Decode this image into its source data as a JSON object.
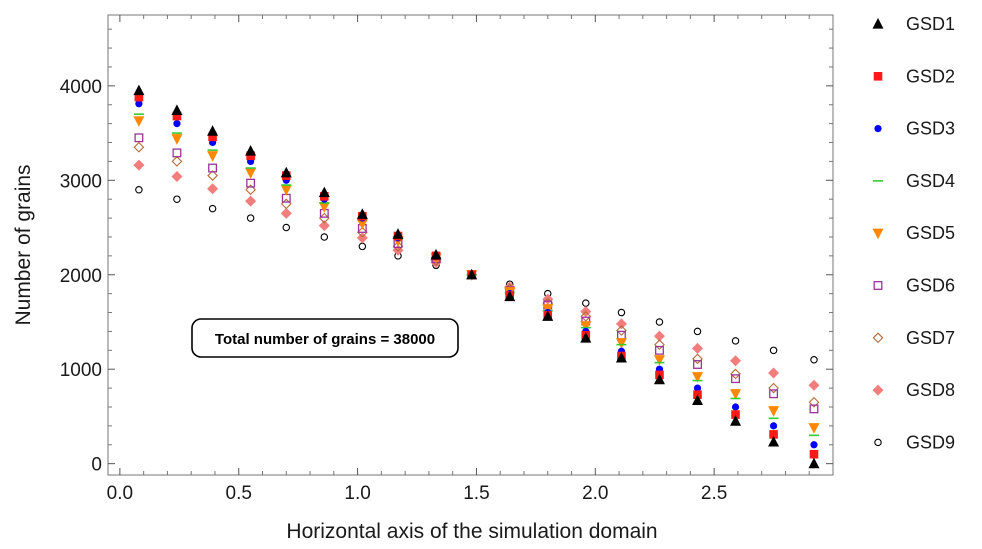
{
  "chart_data": {
    "type": "scatter",
    "title": "",
    "xlabel": "Horizontal axis of the simulation domain",
    "ylabel": "Number of grains",
    "xlim": [
      -0.05,
      3.0
    ],
    "ylim": [
      -120,
      4750
    ],
    "xticks": [
      0.0,
      0.5,
      1.0,
      1.5,
      2.0,
      2.5
    ],
    "yticks": [
      0,
      1000,
      2000,
      3000,
      4000
    ],
    "xtick_labels": [
      "0.0",
      "0.5",
      "1.0",
      "1.5",
      "2.0",
      "2.5"
    ],
    "ytick_labels": [
      "0",
      "1000",
      "2000",
      "3000",
      "4000"
    ],
    "grid": false,
    "legend_position": "right",
    "annotation": "Total number of grains = 38000",
    "x": [
      0.08,
      0.24,
      0.39,
      0.55,
      0.7,
      0.86,
      1.02,
      1.17,
      1.33,
      1.48,
      1.64,
      1.8,
      1.96,
      2.11,
      2.27,
      2.43,
      2.59,
      2.75,
      2.92
    ],
    "series": [
      {
        "name": "GSD1",
        "marker": "triangle",
        "color": "#000000",
        "values": [
          3950,
          3740,
          3520,
          3310,
          3080,
          2870,
          2640,
          2430,
          2210,
          2000,
          1770,
          1560,
          1330,
          1120,
          890,
          670,
          450,
          230,
          0
        ]
      },
      {
        "name": "GSD2",
        "marker": "square",
        "color": "#ff1a1a",
        "values": [
          3880,
          3680,
          3460,
          3260,
          3050,
          2830,
          2620,
          2410,
          2200,
          2000,
          1780,
          1570,
          1360,
          1140,
          940,
          730,
          520,
          310,
          100
        ]
      },
      {
        "name": "GSD3",
        "marker": "circle",
        "color": "#0000ff",
        "values": [
          3810,
          3600,
          3400,
          3200,
          3000,
          2800,
          2600,
          2390,
          2190,
          2000,
          1800,
          1600,
          1400,
          1190,
          1000,
          800,
          600,
          400,
          200
        ]
      },
      {
        "name": "GSD4",
        "marker": "dash",
        "color": "#33cc33",
        "values": [
          3700,
          3500,
          3320,
          3130,
          2950,
          2760,
          2580,
          2380,
          2180,
          2000,
          1810,
          1620,
          1440,
          1260,
          1070,
          880,
          690,
          480,
          300
        ]
      },
      {
        "name": "GSD5",
        "marker": "triangle-down",
        "color": "#ff8800",
        "values": [
          3630,
          3440,
          3260,
          3080,
          2900,
          2720,
          2540,
          2360,
          2180,
          2000,
          1820,
          1640,
          1460,
          1280,
          1100,
          920,
          740,
          560,
          380
        ]
      },
      {
        "name": "GSD6",
        "marker": "square-open",
        "color": "#993399",
        "values": [
          3450,
          3290,
          3130,
          2970,
          2810,
          2650,
          2490,
          2330,
          2170,
          2000,
          1830,
          1680,
          1510,
          1360,
          1200,
          1050,
          900,
          740,
          580
        ]
      },
      {
        "name": "GSD7",
        "marker": "diamond-open",
        "color": "#b36b3a",
        "values": [
          3350,
          3200,
          3050,
          2900,
          2750,
          2600,
          2450,
          2300,
          2150,
          2000,
          1850,
          1700,
          1560,
          1410,
          1260,
          1110,
          950,
          800,
          650
        ]
      },
      {
        "name": "GSD8",
        "marker": "diamond",
        "color": "#f27d7d",
        "values": [
          3160,
          3040,
          2910,
          2780,
          2650,
          2520,
          2390,
          2260,
          2130,
          2000,
          1870,
          1740,
          1610,
          1480,
          1350,
          1220,
          1090,
          960,
          830
        ]
      },
      {
        "name": "GSD9",
        "marker": "circle-open",
        "color": "#000000",
        "values": [
          2900,
          2800,
          2700,
          2600,
          2500,
          2400,
          2300,
          2200,
          2100,
          2000,
          1900,
          1800,
          1700,
          1600,
          1500,
          1400,
          1300,
          1200,
          1100
        ]
      }
    ]
  }
}
